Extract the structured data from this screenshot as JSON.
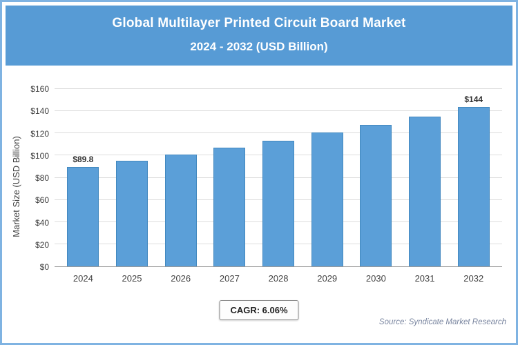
{
  "header": {
    "title_line1": "Global Multilayer Printed Circuit Board Market",
    "title_line2": "2024 - 2032 (USD Billion)"
  },
  "chart_data": {
    "type": "bar",
    "title": "Global Multilayer Printed Circuit Board Market",
    "subtitle": "2024 - 2032 (USD Billion)",
    "categories": [
      "2024",
      "2025",
      "2026",
      "2027",
      "2028",
      "2029",
      "2030",
      "2031",
      "2032"
    ],
    "values": [
      89.8,
      95.2,
      101,
      107,
      113.5,
      120.5,
      127.5,
      135.3,
      144
    ],
    "value_labels": [
      "$89.8",
      "",
      "",
      "",
      "",
      "",
      "",
      "",
      "$144"
    ],
    "xlabel": "",
    "ylabel": "Market Size (USD Billion)",
    "ylim": [
      0,
      160
    ],
    "ytick_step": 20,
    "ytick_prefix": "$",
    "grid": "horizontal",
    "legend": "none",
    "bar_color": "#5b9fd8"
  },
  "footer": {
    "cagr_label": "CAGR: 6.06%",
    "source": "Source: Syndicate Market Research"
  }
}
